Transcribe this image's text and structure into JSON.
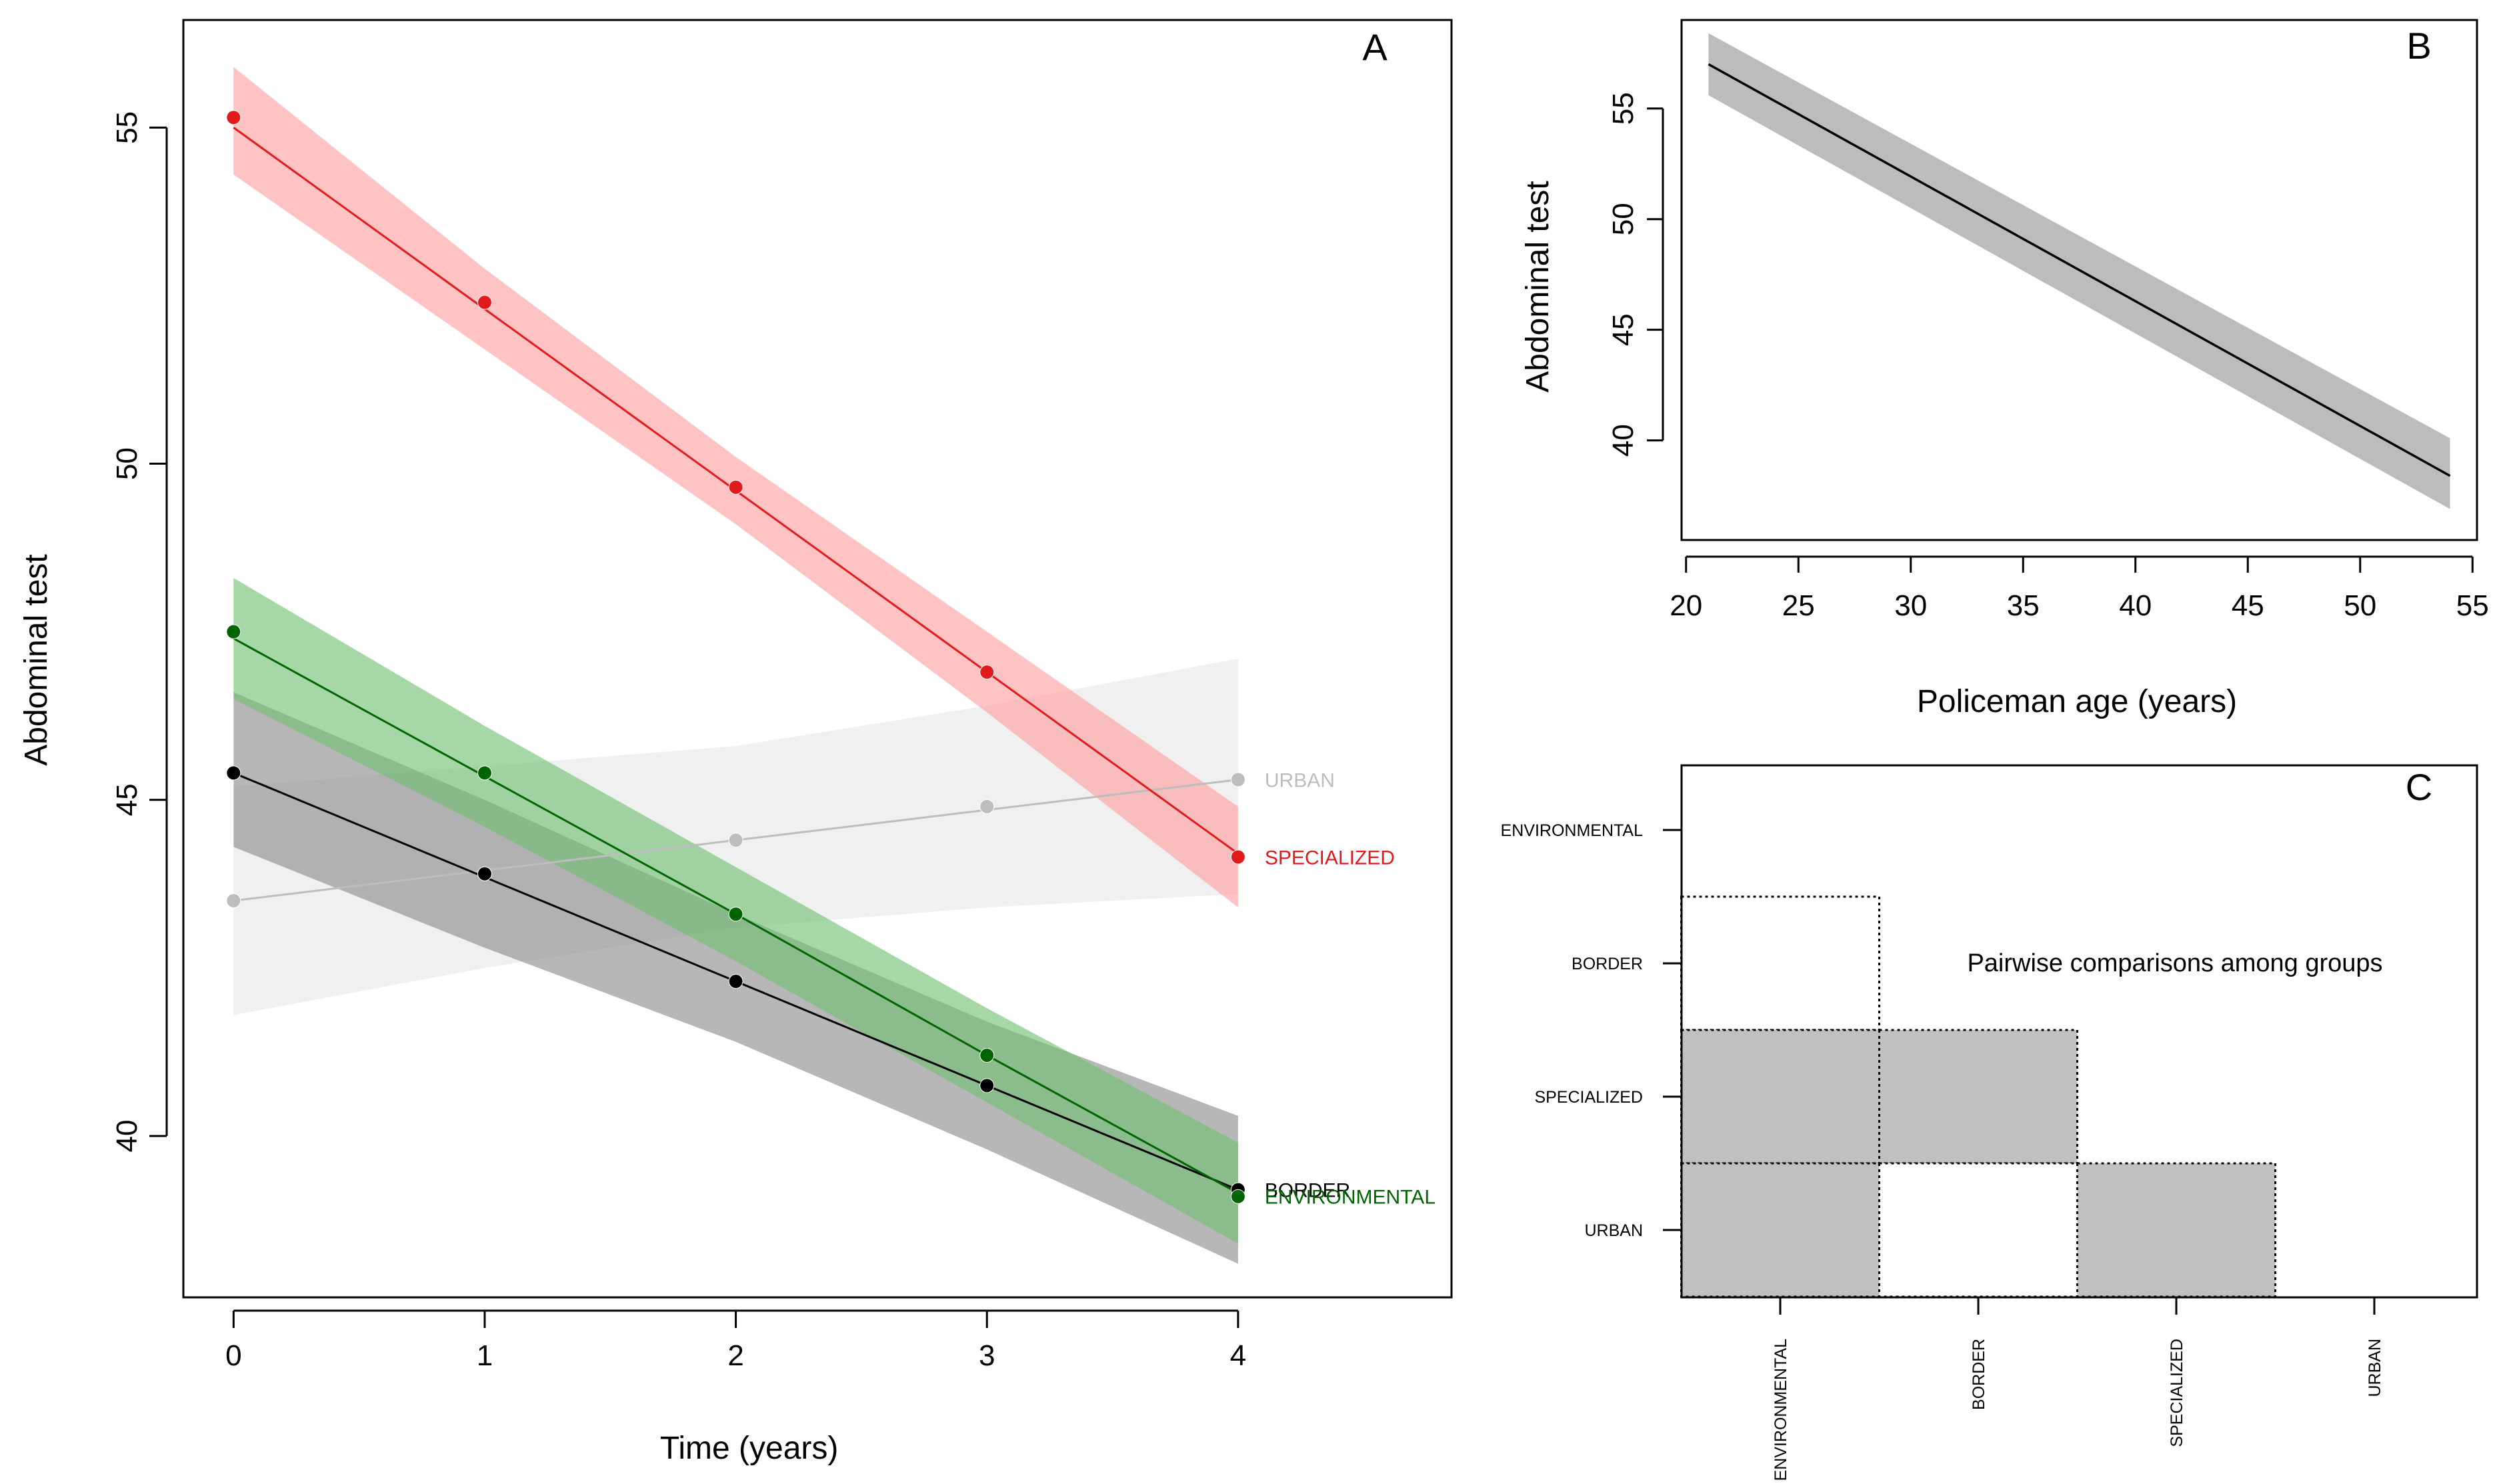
{
  "chart_data": [
    {
      "type": "line",
      "panel_label": "A",
      "xlabel": "Time (years)",
      "ylabel": "Abdominal test",
      "xlim": [
        -0.2,
        4.85
      ],
      "ylim": [
        37.6,
        56.6
      ],
      "xticks": [
        0,
        1,
        2,
        3,
        4
      ],
      "yticks": [
        40,
        45,
        50,
        55
      ],
      "grid": false,
      "series": [
        {
          "name": "URBAN",
          "color": "#bdbdbd",
          "band_color": "#e6e6e6",
          "x": [
            0,
            1,
            2,
            3,
            4
          ],
          "points": [
            43.5,
            43.9,
            44.4,
            44.9,
            45.3
          ],
          "fit": [
            43.5,
            43.95,
            44.4,
            44.85,
            45.3
          ],
          "lower": [
            41.8,
            42.5,
            43.1,
            43.4,
            43.6
          ],
          "upper": [
            45.2,
            45.5,
            45.8,
            46.4,
            47.1
          ]
        },
        {
          "name": "BORDER",
          "color": "#000000",
          "band_color": "#8a8a8a",
          "x": [
            0,
            1,
            2,
            3,
            4
          ],
          "points": [
            45.4,
            43.9,
            42.3,
            40.75,
            39.2
          ],
          "fit": [
            45.4,
            43.85,
            42.3,
            40.75,
            39.2
          ],
          "lower": [
            44.3,
            42.8,
            41.4,
            39.8,
            38.1
          ],
          "upper": [
            46.6,
            45.0,
            43.3,
            41.7,
            40.3
          ]
        },
        {
          "name": "ENVIRONMENTAL",
          "color": "#006400",
          "band_color": "#6fbf6f",
          "x": [
            0,
            1,
            2,
            3,
            4
          ],
          "points": [
            47.5,
            45.4,
            43.3,
            41.2,
            39.1
          ],
          "fit": [
            47.4,
            45.35,
            43.3,
            41.2,
            39.15
          ],
          "lower": [
            46.5,
            44.6,
            42.6,
            40.5,
            38.4
          ],
          "upper": [
            48.3,
            46.1,
            44.0,
            41.9,
            39.9
          ]
        },
        {
          "name": "SPECIALIZED",
          "color": "#e31a1c",
          "band_color": "#ff9e9e",
          "x": [
            0,
            1,
            2,
            3,
            4
          ],
          "points": [
            55.15,
            52.4,
            49.65,
            46.9,
            44.15
          ],
          "fit": [
            55.0,
            52.3,
            49.6,
            46.9,
            44.2
          ],
          "lower": [
            54.3,
            51.7,
            49.1,
            46.3,
            43.4
          ],
          "upper": [
            55.9,
            52.9,
            50.1,
            47.5,
            44.9
          ]
        }
      ]
    },
    {
      "type": "line",
      "panel_label": "B",
      "xlabel": "Policeman age (years)",
      "ylabel": "Abdominal test",
      "xlim": [
        19.8,
        55.2
      ],
      "ylim": [
        35.5,
        59.0
      ],
      "xticks": [
        20,
        25,
        30,
        35,
        40,
        45,
        50,
        55
      ],
      "yticks": [
        40,
        45,
        50,
        55
      ],
      "grid": false,
      "series": [
        {
          "line_color": "#000000",
          "band_color": "#bcbcbc",
          "x": [
            21,
            54
          ],
          "fit": [
            57.0,
            38.4
          ],
          "lower": [
            55.6,
            36.9
          ],
          "upper": [
            58.4,
            40.1
          ]
        }
      ]
    },
    {
      "type": "heatmap",
      "panel_label": "C",
      "annotation": "Pairwise comparisons among groups",
      "row_labels": [
        "ENVIRONMENTAL",
        "BORDER",
        "SPECIALIZED",
        "URBAN"
      ],
      "col_labels": [
        "ENVIRONMENTAL",
        "BORDER",
        "SPECIALIZED",
        "URBAN"
      ],
      "fill_color": "#c0c0c0",
      "cells": [
        {
          "row": "BORDER",
          "col": "ENVIRONMENTAL",
          "significant": false
        },
        {
          "row": "SPECIALIZED",
          "col": "ENVIRONMENTAL",
          "significant": true
        },
        {
          "row": "SPECIALIZED",
          "col": "BORDER",
          "significant": true
        },
        {
          "row": "URBAN",
          "col": "ENVIRONMENTAL",
          "significant": true
        },
        {
          "row": "URBAN",
          "col": "BORDER",
          "significant": false
        },
        {
          "row": "URBAN",
          "col": "SPECIALIZED",
          "significant": true
        }
      ]
    }
  ]
}
